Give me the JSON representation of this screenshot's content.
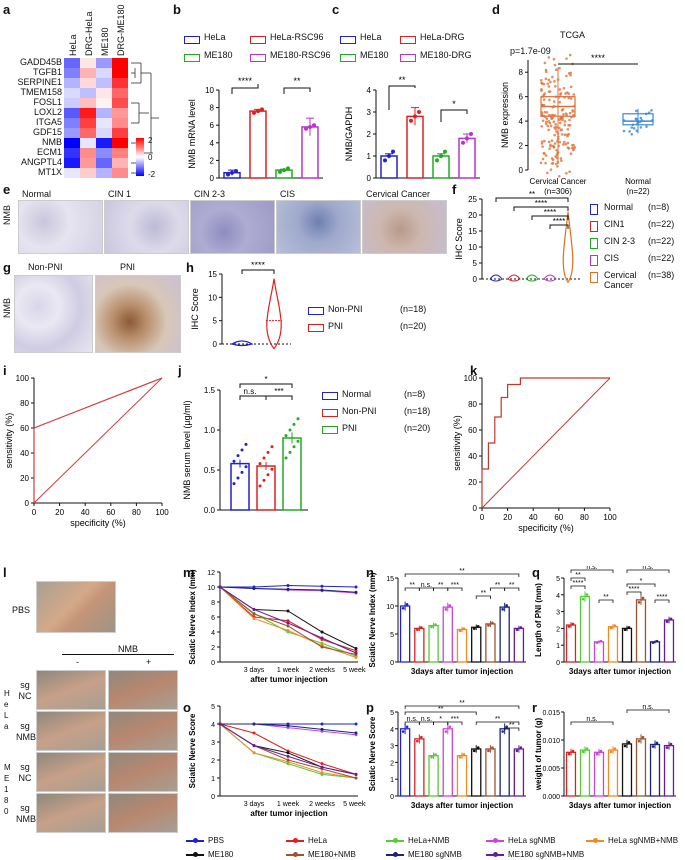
{
  "panel_letters": [
    "a",
    "b",
    "c",
    "d",
    "e",
    "f",
    "g",
    "h",
    "i",
    "j",
    "k",
    "l",
    "m",
    "n",
    "o",
    "p",
    "q",
    "r"
  ],
  "heatmap": {
    "columns": [
      "HeLa",
      "DRG-HeLa",
      "ME180",
      "DRG-ME180"
    ],
    "rows": [
      "GADD45B",
      "TGFB1",
      "SERPINE1",
      "TMEM158",
      "FOSL1",
      "LOXL2",
      "ITGA5",
      "GDF15",
      "NMB",
      "ECM1",
      "ANGPTL4",
      "MT1X"
    ],
    "values": [
      [
        -1.2,
        0.2,
        -0.8,
        2.0
      ],
      [
        -1.0,
        0.6,
        -0.3,
        2.0
      ],
      [
        -0.6,
        0.3,
        -0.5,
        1.6
      ],
      [
        -0.3,
        -0.5,
        0.2,
        1.2
      ],
      [
        -0.4,
        0.5,
        0.1,
        1.4
      ],
      [
        -1.3,
        1.8,
        -0.6,
        0.8
      ],
      [
        -1.0,
        1.5,
        -0.2,
        0.9
      ],
      [
        -0.8,
        1.2,
        -0.3,
        1.5
      ],
      [
        -2.0,
        -0.2,
        -1.8,
        2.0
      ],
      [
        -1.6,
        0.9,
        -0.9,
        1.0
      ],
      [
        -1.8,
        0.8,
        -1.2,
        0.6
      ],
      [
        -0.2,
        0.4,
        -0.6,
        0.9
      ]
    ],
    "scale_ticks": [
      "2",
      "0",
      "-2"
    ],
    "colors": {
      "low": "#0000ff",
      "mid": "#ffffff",
      "high": "#ff0000"
    }
  },
  "panel_b": {
    "legend": [
      "HeLa",
      "HeLa-RSC96",
      "ME180",
      "ME180-RSC96"
    ],
    "colors": [
      "#2222cc",
      "#e02020",
      "#22aa22",
      "#bb33cc"
    ],
    "ylabel": "NMB mRNA level",
    "yticks": [
      "0",
      "2",
      "4",
      "6",
      "8",
      "10"
    ],
    "ylim": [
      0,
      10
    ],
    "values": [
      0.6,
      7.6,
      0.9,
      5.8
    ],
    "errors": [
      0.3,
      0.2,
      0.1,
      1.0
    ],
    "sig": [
      "****",
      "**"
    ]
  },
  "panel_c": {
    "legend": [
      "HeLa",
      "HeLa-DRG",
      "ME180",
      "ME180-DRG"
    ],
    "colors": [
      "#2222cc",
      "#e02020",
      "#22aa22",
      "#bb33cc"
    ],
    "ylabel": "NMB/GAPDH",
    "yticks": [
      "0",
      "1",
      "2",
      "3",
      "4"
    ],
    "ylim": [
      0,
      4
    ],
    "values": [
      1.0,
      2.8,
      1.0,
      1.8
    ],
    "errors": [
      0.1,
      0.4,
      0.1,
      0.2
    ],
    "sig": [
      "**",
      "*"
    ]
  },
  "panel_d": {
    "title": "TCGA",
    "pvalue": "p=1.7e-09",
    "sig": "****",
    "ylabel": "NMB expression",
    "yticks": [
      "0",
      "2",
      "4",
      "6",
      "8"
    ],
    "groups": [
      {
        "label": "Cervical Cancer",
        "n": "(n=306)",
        "color": "#e0703a",
        "q1": 4.4,
        "median": 5.2,
        "q3": 6.0,
        "min": 0.5,
        "max": 8.4
      },
      {
        "label": "Normal",
        "n": "(n=22)",
        "color": "#3a8ad0",
        "q1": 3.7,
        "median": 4.0,
        "q3": 4.6,
        "min": 3.0,
        "max": 5.0
      }
    ]
  },
  "panel_e": {
    "row_label": "NMB",
    "columns": [
      "Normal",
      "CIN 1",
      "CIN 2-3",
      "CIS",
      "Cervical Cancer"
    ]
  },
  "panel_f": {
    "ylabel": "IHC Score",
    "yticks": [
      "0",
      "5",
      "10",
      "15",
      "20",
      "25"
    ],
    "legend": [
      {
        "name": "Normal",
        "n": "(n=8)",
        "color": "#2222cc"
      },
      {
        "name": "CIN1",
        "n": "(n=22)",
        "color": "#e02020"
      },
      {
        "name": "CIN 2-3",
        "n": "(n=22)",
        "color": "#22aa22"
      },
      {
        "name": "CIS",
        "n": "(n=22)",
        "color": "#bb33cc"
      },
      {
        "name": "Cervical Cancer",
        "n": "(n=38)",
        "color": "#e07020"
      }
    ],
    "sig": [
      "**",
      "****",
      "****",
      "****"
    ]
  },
  "panel_g": {
    "columns": [
      "Non-PNI",
      "PNI"
    ],
    "row_label": "NMB"
  },
  "panel_h": {
    "ylabel": "IHC Score",
    "yticks": [
      "0",
      "5",
      "10",
      "15"
    ],
    "sig": "****",
    "legend": [
      {
        "name": "Non-PNI",
        "n": "(n=18)",
        "color": "#2222cc"
      },
      {
        "name": "PNI",
        "n": "(n=20)",
        "color": "#e02020"
      }
    ]
  },
  "panel_i": {
    "xlabel": "specificity (%)",
    "ylabel": "sensitivity (%)",
    "ticks": [
      "0",
      "20",
      "40",
      "60",
      "80",
      "100"
    ],
    "roc": [
      [
        0,
        0
      ],
      [
        0,
        55
      ],
      [
        0,
        60
      ],
      [
        100,
        100
      ]
    ]
  },
  "panel_j": {
    "ylabel": "NMB serum level (µg/ml)",
    "yticks": [
      "0.0",
      "0.5",
      "1.0",
      "1.5"
    ],
    "values": [
      0.58,
      0.55,
      0.9
    ],
    "errors": [
      0.05,
      0.05,
      0.07
    ],
    "sig": [
      "*",
      "n.s.",
      "***"
    ],
    "legend": [
      {
        "name": "Normal",
        "n": "(n=8)",
        "color": "#2222cc"
      },
      {
        "name": "Non-PNI",
        "n": "(n=18)",
        "color": "#e02020"
      },
      {
        "name": "PNI",
        "n": "(n=20)",
        "color": "#22aa22"
      }
    ]
  },
  "panel_k": {
    "xlabel": "specificity (%)",
    "ylabel": "sensitivity (%)",
    "ticks": [
      "0",
      "20",
      "40",
      "60",
      "80",
      "100"
    ],
    "roc": [
      [
        0,
        0
      ],
      [
        0,
        30
      ],
      [
        5,
        30
      ],
      [
        5,
        50
      ],
      [
        10,
        50
      ],
      [
        10,
        70
      ],
      [
        15,
        70
      ],
      [
        15,
        85
      ],
      [
        20,
        85
      ],
      [
        20,
        95
      ],
      [
        30,
        95
      ],
      [
        30,
        100
      ],
      [
        100,
        100
      ]
    ]
  },
  "panel_l": {
    "pbs": "PBS",
    "nmb": "NMB",
    "minus": "-",
    "plus": "+",
    "hela": "H e L a",
    "me180": "M E 1 8 0",
    "rows": [
      "sg NC",
      "sg NMB",
      "sg NC",
      "sg NMB"
    ]
  },
  "panel_m": {
    "ylabel": "Sciatic Nerve Index (mm)",
    "xlabel": "after tumor injection",
    "xticks": [
      "3 days",
      "1 week",
      "2 weeks",
      "5 weeks"
    ],
    "yticks": [
      "0",
      "2",
      "4",
      "6",
      "8",
      "10",
      "12"
    ]
  },
  "panel_o": {
    "ylabel": "Sciatic Nerve Score",
    "xlabel": "after tumor injection",
    "xticks": [
      "3 days",
      "1 week",
      "2 weeks",
      "5 weeks"
    ],
    "yticks": [
      "0",
      "1",
      "2",
      "3",
      "4",
      "5"
    ]
  },
  "panel_n": {
    "ylabel": "Sciatic Nerve Index (mm)",
    "xlabel": "3days after tumor injection",
    "yticks": [
      "0",
      "5",
      "10",
      "15"
    ],
    "values": [
      10,
      6,
      6.5,
      9.8,
      5.8,
      6.2,
      6.8,
      9.8,
      6.0
    ],
    "sig": [
      "**",
      "**",
      "n.s.",
      "**",
      "***",
      "**",
      "**",
      "**"
    ]
  },
  "panel_p": {
    "ylabel": "Sciatic Nerve Score",
    "xlabel": "3days after tumor injection",
    "yticks": [
      "0",
      "1",
      "2",
      "3",
      "4",
      "5"
    ],
    "values": [
      4,
      3.4,
      2.4,
      4,
      2.4,
      2.8,
      2.8,
      4,
      2.8
    ],
    "sig": [
      "**",
      "**",
      "n.s.",
      "n.s.",
      "*",
      "***",
      "**",
      "**"
    ]
  },
  "panel_q": {
    "ylabel": "Length of PNI (mm)",
    "xlabel": "3days after tumor injection",
    "yticks": [
      "0",
      "1",
      "2",
      "3",
      "4",
      "5"
    ],
    "values": [
      2.2,
      3.9,
      1.2,
      2.1,
      2.0,
      3.7,
      1.2,
      2.5
    ],
    "sig": [
      "n.s.",
      "**",
      "****",
      "**",
      "n.s.",
      "*",
      "****",
      "****"
    ]
  },
  "panel_r": {
    "ylabel": "weight of tumor (g)",
    "xlabel": "3days after tumor injection",
    "yticks": [
      "0.000",
      "0.005",
      "0.010",
      "0.015"
    ],
    "values": [
      0.0078,
      0.0082,
      0.0078,
      0.0082,
      0.0093,
      0.0102,
      0.0092,
      0.009
    ],
    "sig": [
      "n.s.",
      "n.s."
    ]
  },
  "legend_bottom": [
    {
      "name": "PBS",
      "color": "#2222cc"
    },
    {
      "name": "HeLa",
      "color": "#e02020"
    },
    {
      "name": "HeLa+NMB",
      "color": "#55cc33"
    },
    {
      "name": "HeLa sgNMB",
      "color": "#cc44dd"
    },
    {
      "name": "HeLa sgNMB+NMB",
      "color": "#f08a24"
    },
    {
      "name": "ME180",
      "color": "#111111"
    },
    {
      "name": "ME180+NMB",
      "color": "#a0522d"
    },
    {
      "name": "ME180 sgNMB",
      "color": "#1a237e"
    },
    {
      "name": "ME180 sgNMB+NMB",
      "color": "#6a1b9a"
    }
  ],
  "series_colors": [
    "#2222cc",
    "#e02020",
    "#55cc33",
    "#cc44dd",
    "#f08a24",
    "#111111",
    "#a0522d",
    "#1a237e",
    "#6a1b9a"
  ]
}
